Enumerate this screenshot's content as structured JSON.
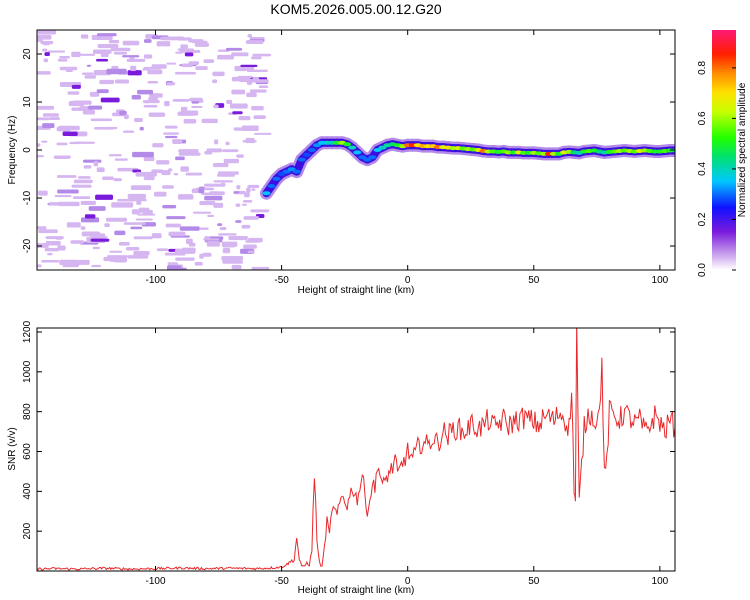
{
  "figure": {
    "title": "KOM5.2026.005.00.12.G20"
  },
  "chart_data": [
    {
      "type": "heatmap",
      "xlabel": "Height of straight line (km)",
      "ylabel": "Frequency (Hz)",
      "xlim": [
        -147,
        106
      ],
      "ylim": [
        -25,
        25
      ],
      "xticks": [
        -100,
        -50,
        0,
        50,
        100
      ],
      "yticks": [
        -20,
        -10,
        0,
        10,
        20
      ],
      "grid": false,
      "colorbar": {
        "label": "Normalized spectral amplitude",
        "range": [
          0,
          0.95
        ],
        "ticks": [
          0.0,
          0.2,
          0.4,
          0.6,
          0.8
        ],
        "colormap": "rainbow (white-violet-blue-cyan-green-yellow-orange-red-pink)"
      },
      "noise_region_x": [
        -147,
        -57
      ],
      "trace": [
        {
          "x": -56,
          "y": -9,
          "a": 0.35
        },
        {
          "x": -54,
          "y": -7.5,
          "a": 0.3
        },
        {
          "x": -52,
          "y": -6,
          "a": 0.3
        },
        {
          "x": -50,
          "y": -5,
          "a": 0.28
        },
        {
          "x": -48,
          "y": -4.5,
          "a": 0.3
        },
        {
          "x": -46,
          "y": -4,
          "a": 0.32
        },
        {
          "x": -44,
          "y": -4.5,
          "a": 0.3
        },
        {
          "x": -42,
          "y": -2,
          "a": 0.3
        },
        {
          "x": -40,
          "y": -1,
          "a": 0.28
        },
        {
          "x": -38,
          "y": 0,
          "a": 0.3
        },
        {
          "x": -36,
          "y": 1,
          "a": 0.32
        },
        {
          "x": -34,
          "y": 1.5,
          "a": 0.35
        },
        {
          "x": -32,
          "y": 1.5,
          "a": 0.38
        },
        {
          "x": -30,
          "y": 1.5,
          "a": 0.4
        },
        {
          "x": -28,
          "y": 1.5,
          "a": 0.5
        },
        {
          "x": -26,
          "y": 1.5,
          "a": 0.6
        },
        {
          "x": -24,
          "y": 1.2,
          "a": 0.5
        },
        {
          "x": -22,
          "y": 0.5,
          "a": 0.4
        },
        {
          "x": -20,
          "y": -0.5,
          "a": 0.35
        },
        {
          "x": -18,
          "y": -1.5,
          "a": 0.3
        },
        {
          "x": -16,
          "y": -2,
          "a": 0.3
        },
        {
          "x": -14,
          "y": -1.5,
          "a": 0.3
        },
        {
          "x": -12,
          "y": 0,
          "a": 0.35
        },
        {
          "x": -10,
          "y": 0.5,
          "a": 0.4
        },
        {
          "x": -8,
          "y": 1,
          "a": 0.42
        },
        {
          "x": -6,
          "y": 1.2,
          "a": 0.45
        },
        {
          "x": -4,
          "y": 1.0,
          "a": 0.5
        },
        {
          "x": -2,
          "y": 0.8,
          "a": 0.6
        },
        {
          "x": 0,
          "y": 1.0,
          "a": 0.8
        },
        {
          "x": 2,
          "y": 1.0,
          "a": 0.85
        },
        {
          "x": 4,
          "y": 1.0,
          "a": 0.7
        },
        {
          "x": 6,
          "y": 0.8,
          "a": 0.75
        },
        {
          "x": 8,
          "y": 0.8,
          "a": 0.7
        },
        {
          "x": 10,
          "y": 0.8,
          "a": 0.72
        },
        {
          "x": 12,
          "y": 0.6,
          "a": 0.8
        },
        {
          "x": 14,
          "y": 0.6,
          "a": 0.65
        },
        {
          "x": 16,
          "y": 0.5,
          "a": 0.7
        },
        {
          "x": 18,
          "y": 0.4,
          "a": 0.6
        },
        {
          "x": 20,
          "y": 0.4,
          "a": 0.65
        },
        {
          "x": 22,
          "y": 0.3,
          "a": 0.55
        },
        {
          "x": 24,
          "y": 0.2,
          "a": 0.6
        },
        {
          "x": 26,
          "y": 0.1,
          "a": 0.55
        },
        {
          "x": 28,
          "y": 0.0,
          "a": 0.65
        },
        {
          "x": 30,
          "y": -0.2,
          "a": 0.8
        },
        {
          "x": 32,
          "y": -0.3,
          "a": 0.6
        },
        {
          "x": 34,
          "y": -0.3,
          "a": 0.55
        },
        {
          "x": 36,
          "y": -0.4,
          "a": 0.5
        },
        {
          "x": 38,
          "y": -0.3,
          "a": 0.55
        },
        {
          "x": 40,
          "y": -0.5,
          "a": 0.6
        },
        {
          "x": 42,
          "y": -0.5,
          "a": 0.5
        },
        {
          "x": 44,
          "y": -0.5,
          "a": 0.65
        },
        {
          "x": 46,
          "y": -0.6,
          "a": 0.55
        },
        {
          "x": 48,
          "y": -0.6,
          "a": 0.5
        },
        {
          "x": 50,
          "y": -0.6,
          "a": 0.6
        },
        {
          "x": 52,
          "y": -0.7,
          "a": 0.55
        },
        {
          "x": 54,
          "y": -0.8,
          "a": 0.6
        },
        {
          "x": 56,
          "y": -0.8,
          "a": 0.85
        },
        {
          "x": 58,
          "y": -0.8,
          "a": 0.6
        },
        {
          "x": 60,
          "y": -0.8,
          "a": 0.5
        },
        {
          "x": 62,
          "y": -0.5,
          "a": 0.65
        },
        {
          "x": 64,
          "y": -0.4,
          "a": 0.6
        },
        {
          "x": 66,
          "y": -0.5,
          "a": 0.45
        },
        {
          "x": 68,
          "y": -0.6,
          "a": 0.4
        },
        {
          "x": 70,
          "y": -0.3,
          "a": 0.5
        },
        {
          "x": 72,
          "y": -0.2,
          "a": 0.55
        },
        {
          "x": 74,
          "y": -0.1,
          "a": 0.5
        },
        {
          "x": 76,
          "y": -0.3,
          "a": 0.45
        },
        {
          "x": 78,
          "y": -0.5,
          "a": 0.4
        },
        {
          "x": 80,
          "y": -0.4,
          "a": 0.5
        },
        {
          "x": 82,
          "y": -0.3,
          "a": 0.55
        },
        {
          "x": 84,
          "y": -0.2,
          "a": 0.6
        },
        {
          "x": 86,
          "y": -0.1,
          "a": 0.55
        },
        {
          "x": 88,
          "y": -0.2,
          "a": 0.6
        },
        {
          "x": 90,
          "y": -0.3,
          "a": 0.55
        },
        {
          "x": 92,
          "y": -0.2,
          "a": 0.65
        },
        {
          "x": 94,
          "y": -0.1,
          "a": 0.6
        },
        {
          "x": 96,
          "y": -0.2,
          "a": 0.55
        },
        {
          "x": 98,
          "y": -0.3,
          "a": 0.5
        },
        {
          "x": 100,
          "y": -0.3,
          "a": 0.5
        },
        {
          "x": 102,
          "y": -0.2,
          "a": 0.55
        },
        {
          "x": 104,
          "y": -0.1,
          "a": 0.5
        },
        {
          "x": 106,
          "y": -0.1,
          "a": 0.45
        }
      ]
    },
    {
      "type": "line",
      "xlabel": "Height of straight line (km)",
      "ylabel": "SNR (v/v)",
      "xlim": [
        -147,
        106
      ],
      "ylim": [
        0,
        1220
      ],
      "xticks": [
        -100,
        -50,
        0,
        50,
        100
      ],
      "yticks": [
        200,
        400,
        600,
        800,
        1000,
        1200
      ],
      "grid": false,
      "color": "#e8282b",
      "x": [
        -147,
        -140,
        -130,
        -120,
        -110,
        -100,
        -90,
        -80,
        -70,
        -60,
        -55,
        -50,
        -47,
        -45,
        -44,
        -43,
        -42,
        -41,
        -40,
        -39,
        -38,
        -37,
        -36,
        -35,
        -34,
        -33,
        -32,
        -31,
        -30,
        -28,
        -26,
        -24,
        -22,
        -20,
        -18,
        -16,
        -15,
        -14,
        -13,
        -12,
        -10,
        -8,
        -6,
        -5,
        -4,
        -2,
        0,
        2,
        4,
        6,
        8,
        10,
        12,
        14,
        16,
        18,
        20,
        22,
        24,
        26,
        28,
        30,
        32,
        34,
        36,
        38,
        40,
        42,
        44,
        46,
        48,
        50,
        52,
        54,
        56,
        58,
        60,
        62,
        64,
        65,
        66,
        66.5,
        67,
        68,
        70,
        72,
        74,
        76,
        77,
        78,
        79,
        80,
        82,
        84,
        86,
        88,
        90,
        92,
        94,
        96,
        98,
        100,
        102,
        104,
        106
      ],
      "y": [
        10,
        12,
        10,
        14,
        10,
        12,
        15,
        12,
        14,
        12,
        15,
        20,
        40,
        60,
        170,
        60,
        20,
        25,
        40,
        30,
        100,
        500,
        160,
        40,
        20,
        120,
        250,
        180,
        320,
        280,
        380,
        330,
        420,
        360,
        480,
        300,
        350,
        450,
        400,
        550,
        420,
        480,
        520,
        560,
        480,
        540,
        600,
        560,
        620,
        650,
        630,
        670,
        640,
        700,
        680,
        710,
        720,
        690,
        720,
        740,
        710,
        730,
        760,
        720,
        740,
        760,
        730,
        750,
        760,
        770,
        760,
        750,
        730,
        770,
        780,
        750,
        800,
        770,
        720,
        900,
        420,
        340,
        1220,
        350,
        720,
        800,
        760,
        780,
        1060,
        480,
        560,
        800,
        780,
        760,
        800,
        770,
        740,
        760,
        700,
        730,
        780,
        750,
        700,
        760,
        720
      ]
    }
  ]
}
